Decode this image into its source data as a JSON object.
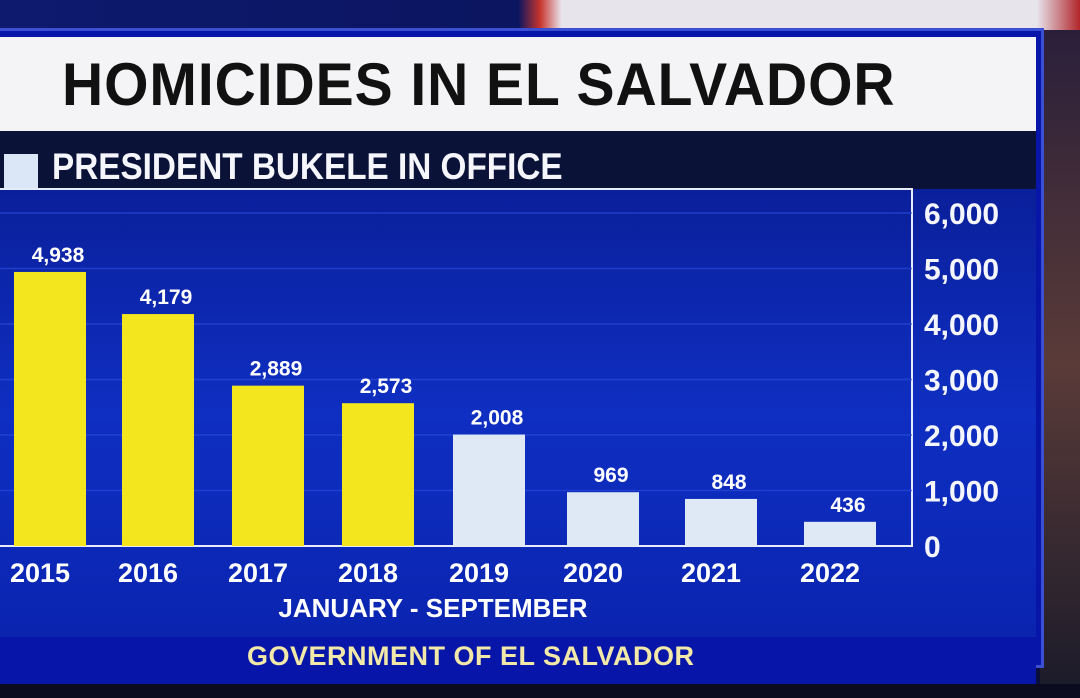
{
  "title": "HOMICIDES IN EL SALVADOR",
  "legend": {
    "label": "PRESIDENT BUKELE IN OFFICE",
    "swatch_color": "#dbe7f7"
  },
  "source": "GOVERNMENT OF EL SALVADOR",
  "colors": {
    "before": "#f4e61e",
    "bukele": "#dfe9f6",
    "panel": "#0f2fc2"
  },
  "chart_data": {
    "type": "bar",
    "title": "HOMICIDES IN EL SALVADOR",
    "categories": [
      "2015",
      "2016",
      "2017",
      "2018",
      "2019",
      "2020",
      "2021",
      "2022"
    ],
    "values": [
      4938,
      4179,
      2889,
      2573,
      2008,
      969,
      848,
      436
    ],
    "value_labels": [
      "4,938",
      "4,179",
      "2,889",
      "2,573",
      "2,008",
      "969",
      "848",
      "436"
    ],
    "bukele_in_office": [
      false,
      false,
      false,
      false,
      true,
      true,
      true,
      true
    ],
    "ylim": [
      0,
      6000
    ],
    "yticks": [
      0,
      1000,
      2000,
      3000,
      4000,
      5000,
      6000
    ],
    "ytick_labels": [
      "0",
      "1,000",
      "2,000",
      "3,000",
      "4,000",
      "5,000",
      "6,000"
    ],
    "y_axis_side": "right",
    "x_note": "JANUARY - SEPTEMBER",
    "grid": true
  }
}
